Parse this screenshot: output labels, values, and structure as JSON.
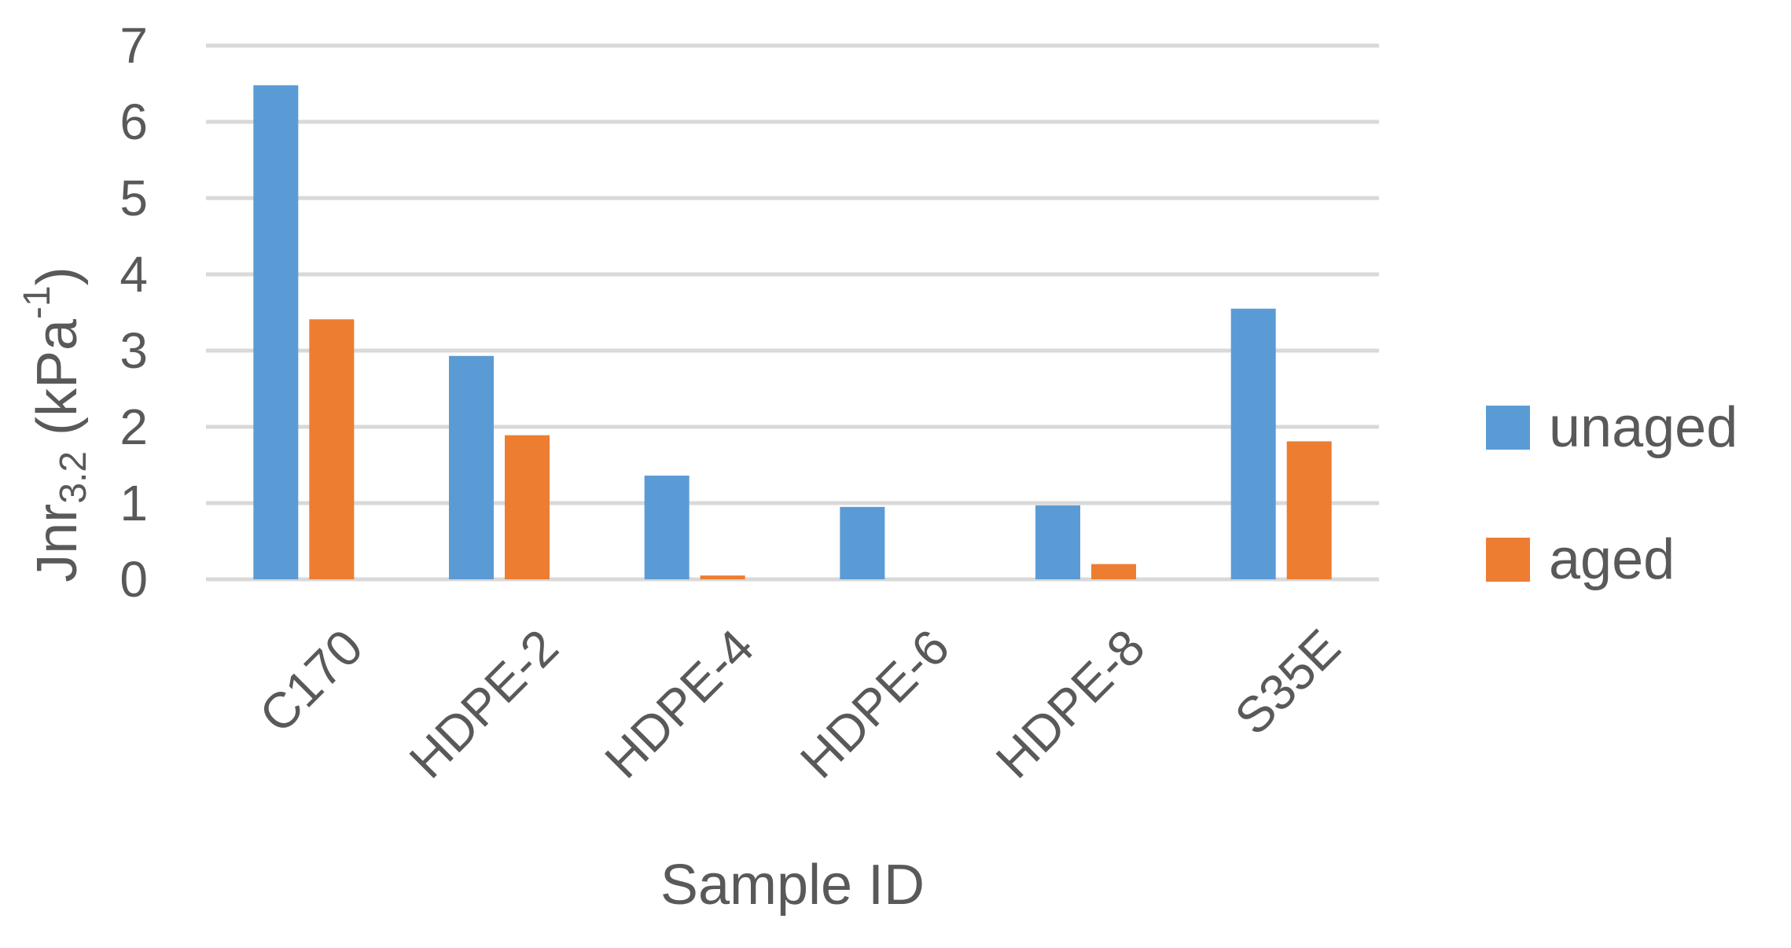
{
  "chart_data": {
    "type": "bar",
    "title": "",
    "xlabel": "Sample ID",
    "ylabel": {
      "main": "Jnr",
      "subscript": "3.2",
      "unit_open": " (kPa",
      "superscript": "-1",
      "unit_close": ")"
    },
    "categories": [
      "C170",
      "HDPE-2",
      "HDPE-4",
      "HDPE-6",
      "HDPE-8",
      "S35E"
    ],
    "series": [
      {
        "name": "unaged",
        "color": "#5B9BD5",
        "values": [
          6.48,
          2.93,
          1.36,
          0.95,
          0.97,
          3.55
        ]
      },
      {
        "name": "aged",
        "color": "#ED7D31",
        "values": [
          3.41,
          1.89,
          0.05,
          0.0,
          0.2,
          1.81
        ]
      }
    ],
    "ylim": [
      0,
      7
    ],
    "yticks": [
      "0",
      "1",
      "2",
      "3",
      "4",
      "5",
      "6",
      "7"
    ],
    "grid": true,
    "legend_position": "right"
  }
}
